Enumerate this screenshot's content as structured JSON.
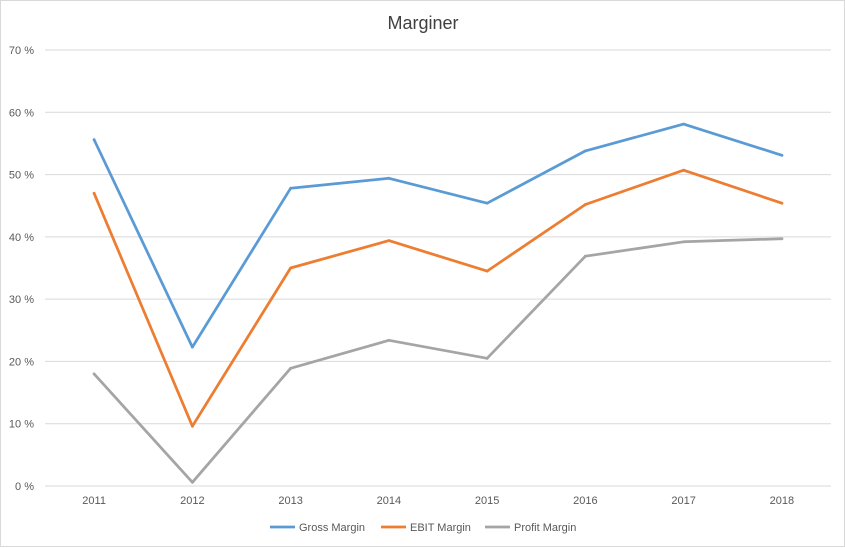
{
  "chart_data": {
    "type": "line",
    "title": "Marginer",
    "xlabel": "",
    "ylabel": "",
    "categories": [
      "2011",
      "2012",
      "2013",
      "2014",
      "2015",
      "2016",
      "2017",
      "2018"
    ],
    "ylim": [
      0,
      70
    ],
    "yticks": [
      0,
      10,
      20,
      30,
      40,
      50,
      60,
      70
    ],
    "ytick_labels": [
      "0 %",
      "10 %",
      "20 %",
      "30 %",
      "40 %",
      "50 %",
      "60 %",
      "70 %"
    ],
    "grid": true,
    "legend_position": "bottom",
    "series": [
      {
        "name": "Gross Margin",
        "color": "#5b9bd5",
        "values": [
          55.6,
          22.3,
          47.8,
          49.4,
          45.4,
          53.8,
          58.1,
          53.1
        ]
      },
      {
        "name": "EBIT Margin",
        "color": "#ed7d31",
        "values": [
          47.0,
          9.6,
          35.0,
          39.4,
          34.5,
          45.2,
          50.7,
          45.4
        ]
      },
      {
        "name": "Profit Margin",
        "color": "#a5a5a5",
        "values": [
          18.0,
          0.6,
          18.9,
          23.4,
          20.5,
          36.9,
          39.2,
          39.7
        ]
      }
    ]
  }
}
